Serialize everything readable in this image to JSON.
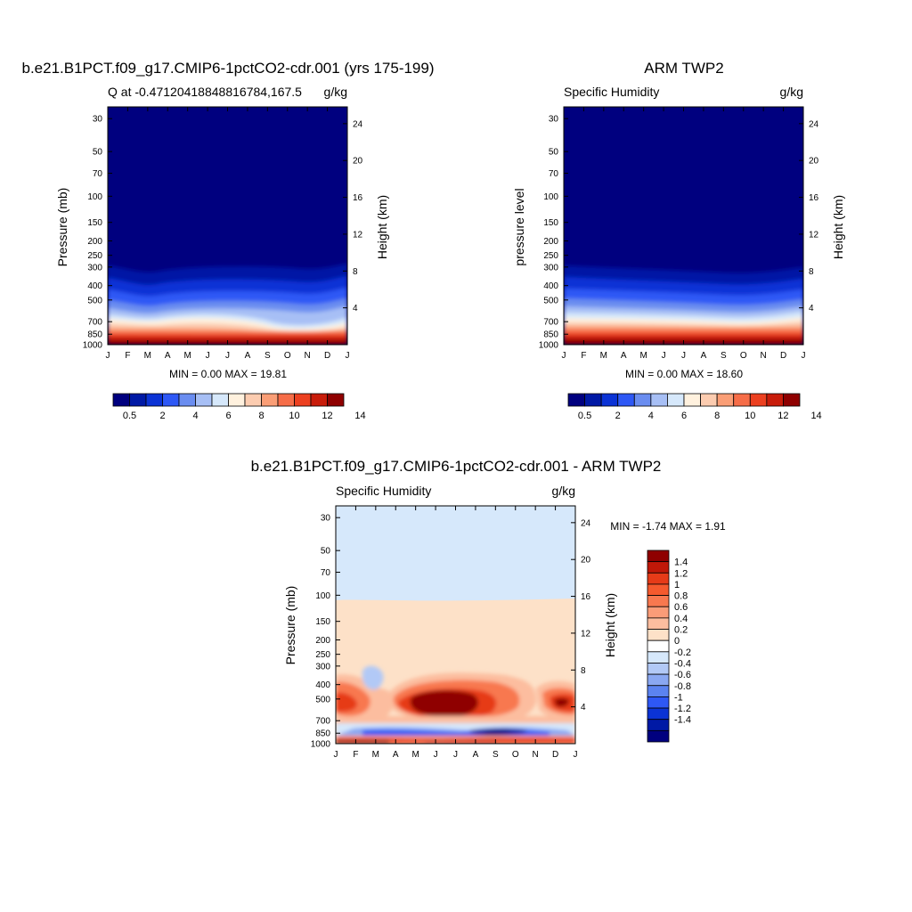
{
  "chart_data": [
    {
      "type": "heatmap",
      "title": "b.e21.B1PCT.f09_g17.CMIP6-1pctCO2-cdr.001 (yrs 175-199)",
      "subtitle_left": "Q at -0.47120418848816784,167.5",
      "subtitle_right": "g/kg",
      "ylabel": "Pressure (mb)",
      "y2label": "Height (km)",
      "x_ticks": [
        "J",
        "F",
        "M",
        "A",
        "M",
        "J",
        "J",
        "A",
        "S",
        "O",
        "N",
        "D",
        "J"
      ],
      "y_ticks": [
        30,
        50,
        70,
        100,
        150,
        200,
        250,
        300,
        400,
        500,
        700,
        850,
        1000
      ],
      "y2_ticks": [
        24,
        20,
        16,
        12,
        8,
        4
      ],
      "ylim": [
        25,
        1000
      ],
      "y_scale": "log",
      "stats": "MIN =   0.00 MAX =  19.81",
      "colorbar": {
        "orientation": "horizontal",
        "labels": [
          "0.5",
          "2",
          "4",
          "6",
          "8",
          "10",
          "12",
          "14"
        ],
        "colors": [
          "#00007f",
          "#0019a5",
          "#0b33d5",
          "#2e58f5",
          "#6a8df0",
          "#a7bff5",
          "#d6e8fb",
          "#fff1de",
          "#fcccb0",
          "#fa9e76",
          "#f66d48",
          "#ec4020",
          "#c81c0a",
          "#8f0000"
        ]
      }
    },
    {
      "type": "heatmap",
      "title": "ARM TWP2",
      "subtitle_left": "Specific Humidity",
      "subtitle_right": "g/kg",
      "ylabel": "pressure level",
      "y2label": "Height (km)",
      "x_ticks": [
        "J",
        "F",
        "M",
        "A",
        "M",
        "J",
        "J",
        "A",
        "S",
        "O",
        "N",
        "D",
        "J"
      ],
      "y_ticks": [
        30,
        50,
        70,
        100,
        150,
        200,
        250,
        300,
        400,
        500,
        700,
        850,
        1000
      ],
      "y2_ticks": [
        24,
        20,
        16,
        12,
        8,
        4
      ],
      "ylim": [
        25,
        1000
      ],
      "y_scale": "log",
      "stats": "MIN =   0.00 MAX =  18.60",
      "colorbar": {
        "orientation": "horizontal",
        "labels": [
          "0.5",
          "2",
          "4",
          "6",
          "8",
          "10",
          "12",
          "14"
        ],
        "colors": [
          "#00007f",
          "#0019a5",
          "#0b33d5",
          "#2e58f5",
          "#6a8df0",
          "#a7bff5",
          "#d6e8fb",
          "#fff1de",
          "#fcccb0",
          "#fa9e76",
          "#f66d48",
          "#ec4020",
          "#c81c0a",
          "#8f0000"
        ]
      }
    },
    {
      "type": "heatmap",
      "title": "b.e21.B1PCT.f09_g17.CMIP6-1pctCO2-cdr.001 - ARM TWP2",
      "subtitle_left": "Specific Humidity",
      "subtitle_right": "g/kg",
      "ylabel": "Pressure (mb)",
      "y2label": "Height (km)",
      "x_ticks": [
        "J",
        "F",
        "M",
        "A",
        "M",
        "J",
        "J",
        "A",
        "S",
        "O",
        "N",
        "D",
        "J"
      ],
      "y_ticks": [
        30,
        50,
        70,
        100,
        150,
        200,
        250,
        300,
        400,
        500,
        700,
        850,
        1000
      ],
      "y2_ticks": [
        24,
        20,
        16,
        12,
        8,
        4
      ],
      "ylim": [
        25,
        1000
      ],
      "y_scale": "log",
      "stats": "MIN =  -1.74 MAX =   1.91",
      "colorbar": {
        "orientation": "vertical",
        "labels": [
          "1.4",
          "1.2",
          "1",
          "0.8",
          "0.6",
          "0.4",
          "0.2",
          "0",
          "-0.2",
          "-0.4",
          "-0.6",
          "-0.8",
          "-1",
          "-1.2",
          "-1.4"
        ],
        "colors": [
          "#8f0000",
          "#c01808",
          "#e63b18",
          "#f55a2e",
          "#f8784f",
          "#fa9c78",
          "#fcbd9f",
          "#fde1c8",
          "#ffffff",
          "#d6e8fb",
          "#b2c9f6",
          "#8aa8f2",
          "#5b83f0",
          "#2e58f5",
          "#0b33d5",
          "#0019a5",
          "#00007f"
        ]
      }
    }
  ]
}
